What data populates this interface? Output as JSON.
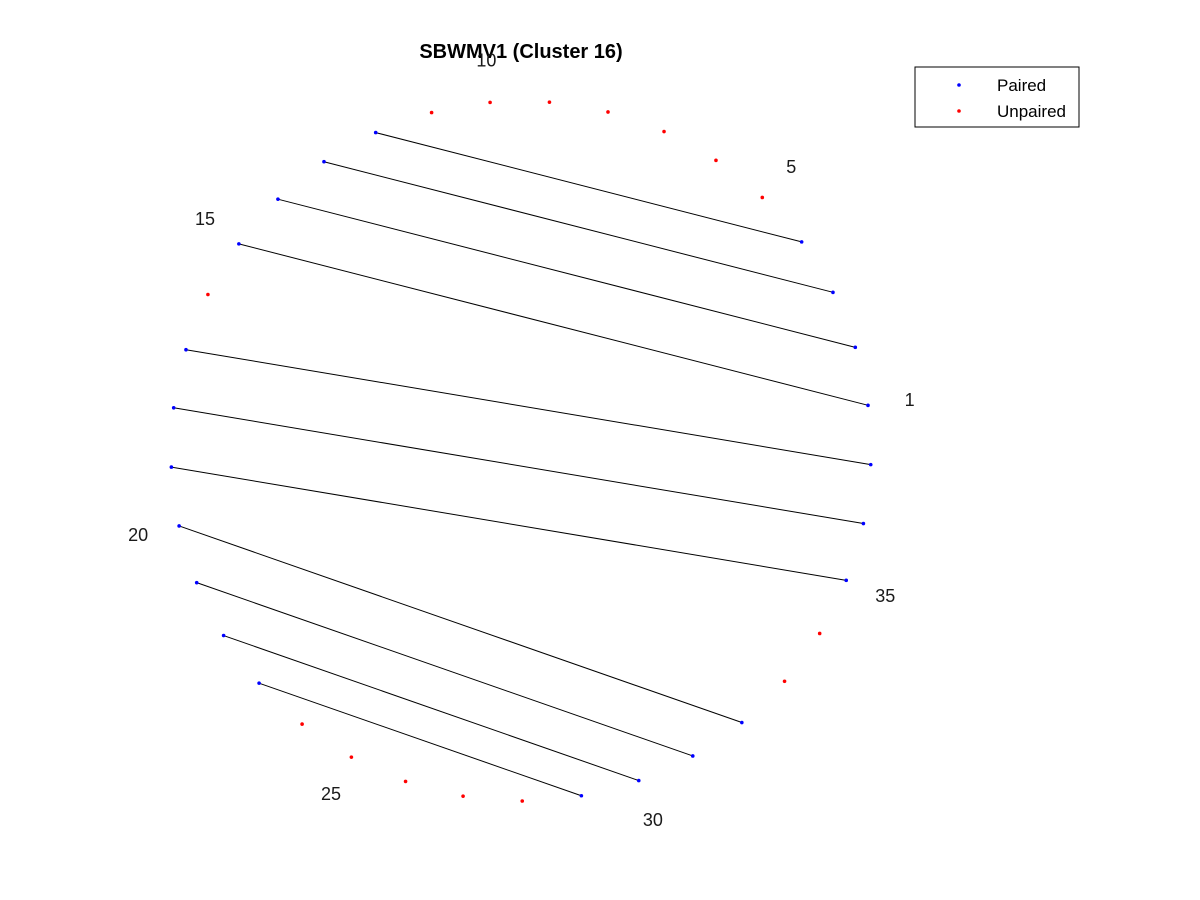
{
  "chart_data": {
    "type": "scatter",
    "title": "SBWMV1 (Cluster 16)",
    "n_positions": 37,
    "index_labels": [
      1,
      5,
      10,
      15,
      20,
      25,
      30,
      35
    ],
    "pairs": [
      [
        1,
        15
      ],
      [
        2,
        14
      ],
      [
        3,
        13
      ],
      [
        4,
        12
      ],
      [
        17,
        37
      ],
      [
        18,
        36
      ],
      [
        19,
        35
      ],
      [
        20,
        32
      ],
      [
        21,
        31
      ],
      [
        22,
        30
      ],
      [
        23,
        29
      ]
    ],
    "series": [
      {
        "name": "Paired",
        "color": "#0000ff",
        "positions": [
          1,
          2,
          3,
          4,
          12,
          13,
          14,
          15,
          17,
          18,
          19,
          20,
          21,
          22,
          23,
          29,
          30,
          31,
          32,
          35,
          36,
          37
        ]
      },
      {
        "name": "Unpaired",
        "color": "#ff0000",
        "positions": [
          5,
          6,
          7,
          8,
          9,
          10,
          11,
          16,
          24,
          25,
          26,
          27,
          28,
          33,
          34
        ]
      }
    ],
    "legend_position": "top-right",
    "arc_color": "#000000",
    "grid": false,
    "axes_visible": false
  }
}
